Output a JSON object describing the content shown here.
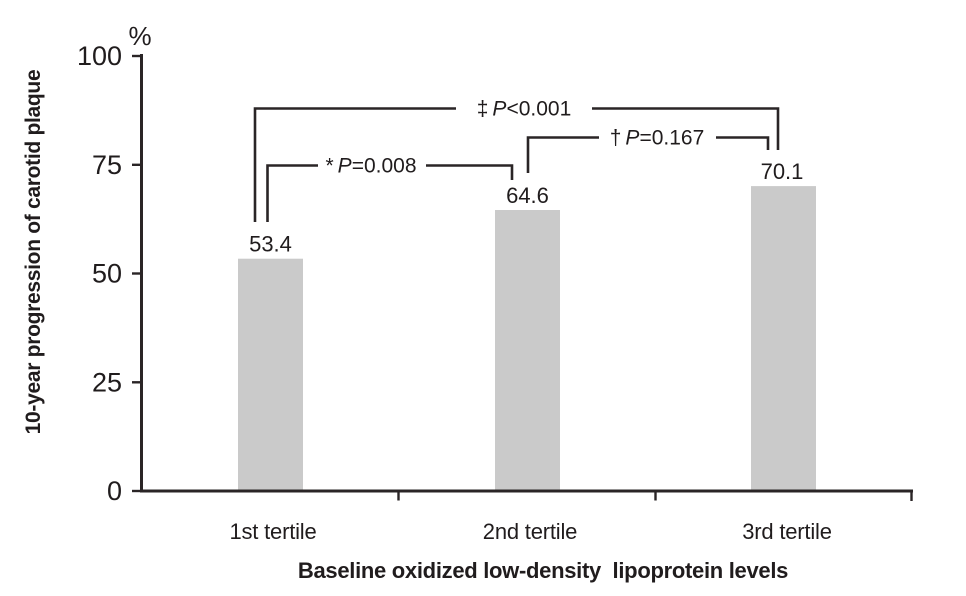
{
  "chart_data": {
    "type": "bar",
    "title": "",
    "categories": [
      "1st tertile",
      "2nd tertile",
      "3rd tertile"
    ],
    "values": [
      53.4,
      64.6,
      70.1
    ],
    "xlabel": "Baseline oxidized low-density  lipoprotein levels",
    "ylabel": "10-year progression of carotid plaque",
    "y_unit": "%",
    "ylim": [
      0,
      100
    ],
    "yticks": [
      100,
      75,
      50,
      25,
      0
    ],
    "grid": false,
    "legend": "none",
    "bar_color": "#cacaca",
    "line_color": "#2a2526",
    "annotations": [
      {
        "sym": "*",
        "p": "P",
        "rest": "=0.008",
        "compares": "1st tertile vs 2nd tertile"
      },
      {
        "sym": "†",
        "p": "P",
        "rest": "=0.167",
        "compares": "2nd tertile vs 3rd tertile"
      },
      {
        "sym": "‡",
        "p": "P",
        "rest": "<0.001",
        "compares": "1st tertile vs 3rd tertile"
      }
    ]
  }
}
